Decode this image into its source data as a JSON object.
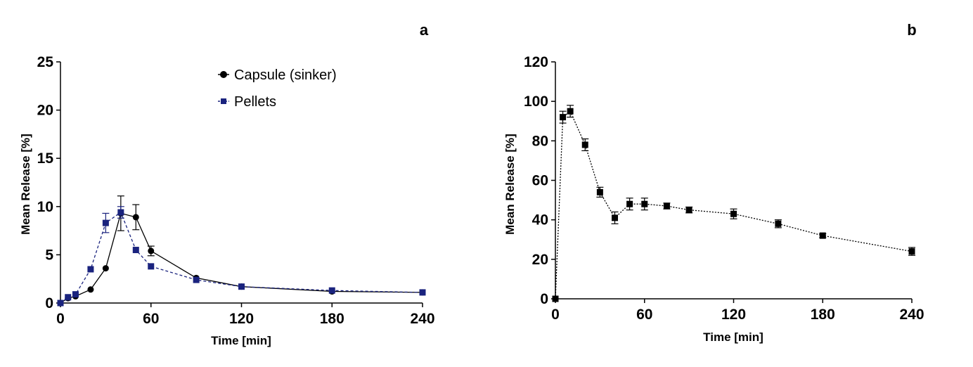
{
  "chart_data": [
    {
      "type": "line",
      "panel_label": "a",
      "xlabel": "Time [min]",
      "ylabel": "Mean Release [%]",
      "xlim": [
        0,
        240
      ],
      "ylim": [
        0,
        25
      ],
      "xticks": [
        0,
        60,
        120,
        180,
        240
      ],
      "yticks": [
        0,
        5,
        10,
        15,
        20,
        25
      ],
      "grid": false,
      "legend_position": "top-center",
      "series": [
        {
          "name": "Capsule (sinker)",
          "color": "#000000",
          "marker": "circle",
          "line_style": "solid",
          "x": [
            0,
            5,
            10,
            20,
            30,
            40,
            50,
            60,
            90,
            120,
            180,
            240
          ],
          "y": [
            0,
            0.5,
            0.7,
            1.4,
            3.6,
            9.3,
            8.9,
            5.4,
            2.6,
            1.7,
            1.2,
            1.1
          ],
          "error": [
            0,
            0,
            0,
            0,
            0,
            1.8,
            1.3,
            0.5,
            0,
            0,
            0,
            0
          ]
        },
        {
          "name": "Pellets",
          "color": "#1a237e",
          "marker": "square",
          "line_style": "dashed",
          "x": [
            0,
            5,
            10,
            20,
            30,
            40,
            50,
            60,
            90,
            120,
            180,
            240
          ],
          "y": [
            0,
            0.6,
            0.9,
            3.5,
            8.3,
            9.4,
            5.5,
            3.8,
            2.4,
            1.7,
            1.3,
            1.1
          ],
          "error": [
            0,
            0,
            0,
            0,
            1.0,
            0.6,
            0,
            0,
            0,
            0,
            0,
            0
          ]
        }
      ]
    },
    {
      "type": "line",
      "panel_label": "b",
      "xlabel": "Time [min]",
      "ylabel": "Mean Release [%]",
      "xlim": [
        0,
        240
      ],
      "ylim": [
        0,
        120
      ],
      "xticks": [
        0,
        60,
        120,
        180,
        240
      ],
      "yticks": [
        0,
        20,
        40,
        60,
        80,
        100,
        120
      ],
      "grid": false,
      "series": [
        {
          "color": "#000000",
          "marker": "square",
          "line_style": "dotted",
          "x": [
            0,
            5,
            10,
            20,
            30,
            40,
            50,
            60,
            75,
            90,
            120,
            150,
            180,
            240
          ],
          "y": [
            0,
            92,
            95,
            78,
            54,
            41,
            48,
            48,
            47,
            45,
            43,
            38,
            32,
            24
          ],
          "error": [
            0,
            3,
            3,
            3,
            2.5,
            3,
            3,
            3,
            1.5,
            1.5,
            2.5,
            2,
            1,
            2
          ]
        }
      ]
    }
  ]
}
